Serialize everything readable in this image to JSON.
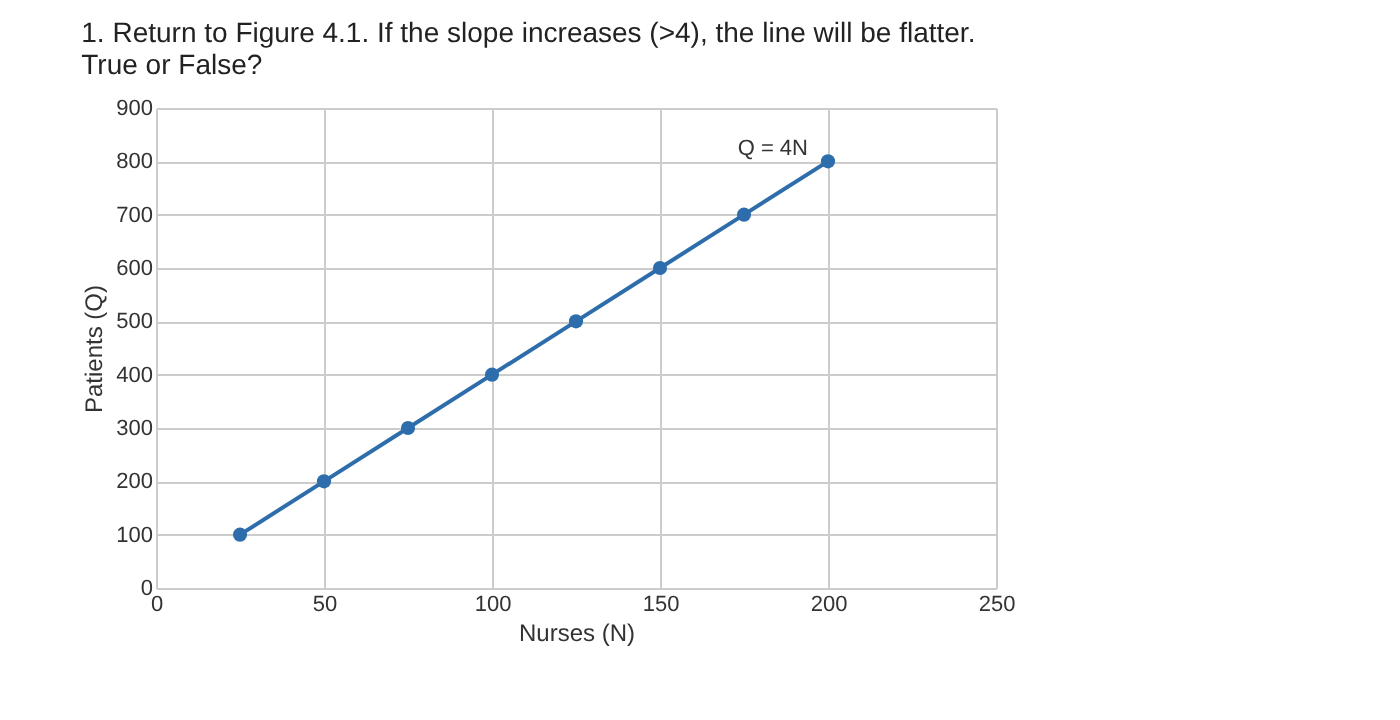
{
  "chart_data": {
    "type": "line",
    "title": "1. Return to Figure 4.1. If the slope increases (>4), the line will be flatter. True or False?",
    "xlabel": "Nurses (N)",
    "ylabel": "Patients (Q)",
    "x": [
      25,
      50,
      75,
      100,
      125,
      150,
      175,
      200
    ],
    "series": [
      {
        "color": "#2e6dab",
        "values": [
          100,
          200,
          300,
          400,
          500,
          600,
          700,
          800
        ]
      }
    ],
    "xlim": [
      0,
      250
    ],
    "xticks": [
      0,
      50,
      100,
      150,
      200,
      250
    ],
    "ylim": [
      0,
      900
    ],
    "yticks": [
      0,
      100,
      200,
      300,
      400,
      500,
      600,
      700,
      800,
      900
    ],
    "grid": true,
    "marker": "circle",
    "line_style": "solid",
    "annotations": [
      {
        "text": "Q = 4N",
        "x": 200,
        "y": 800
      }
    ]
  }
}
